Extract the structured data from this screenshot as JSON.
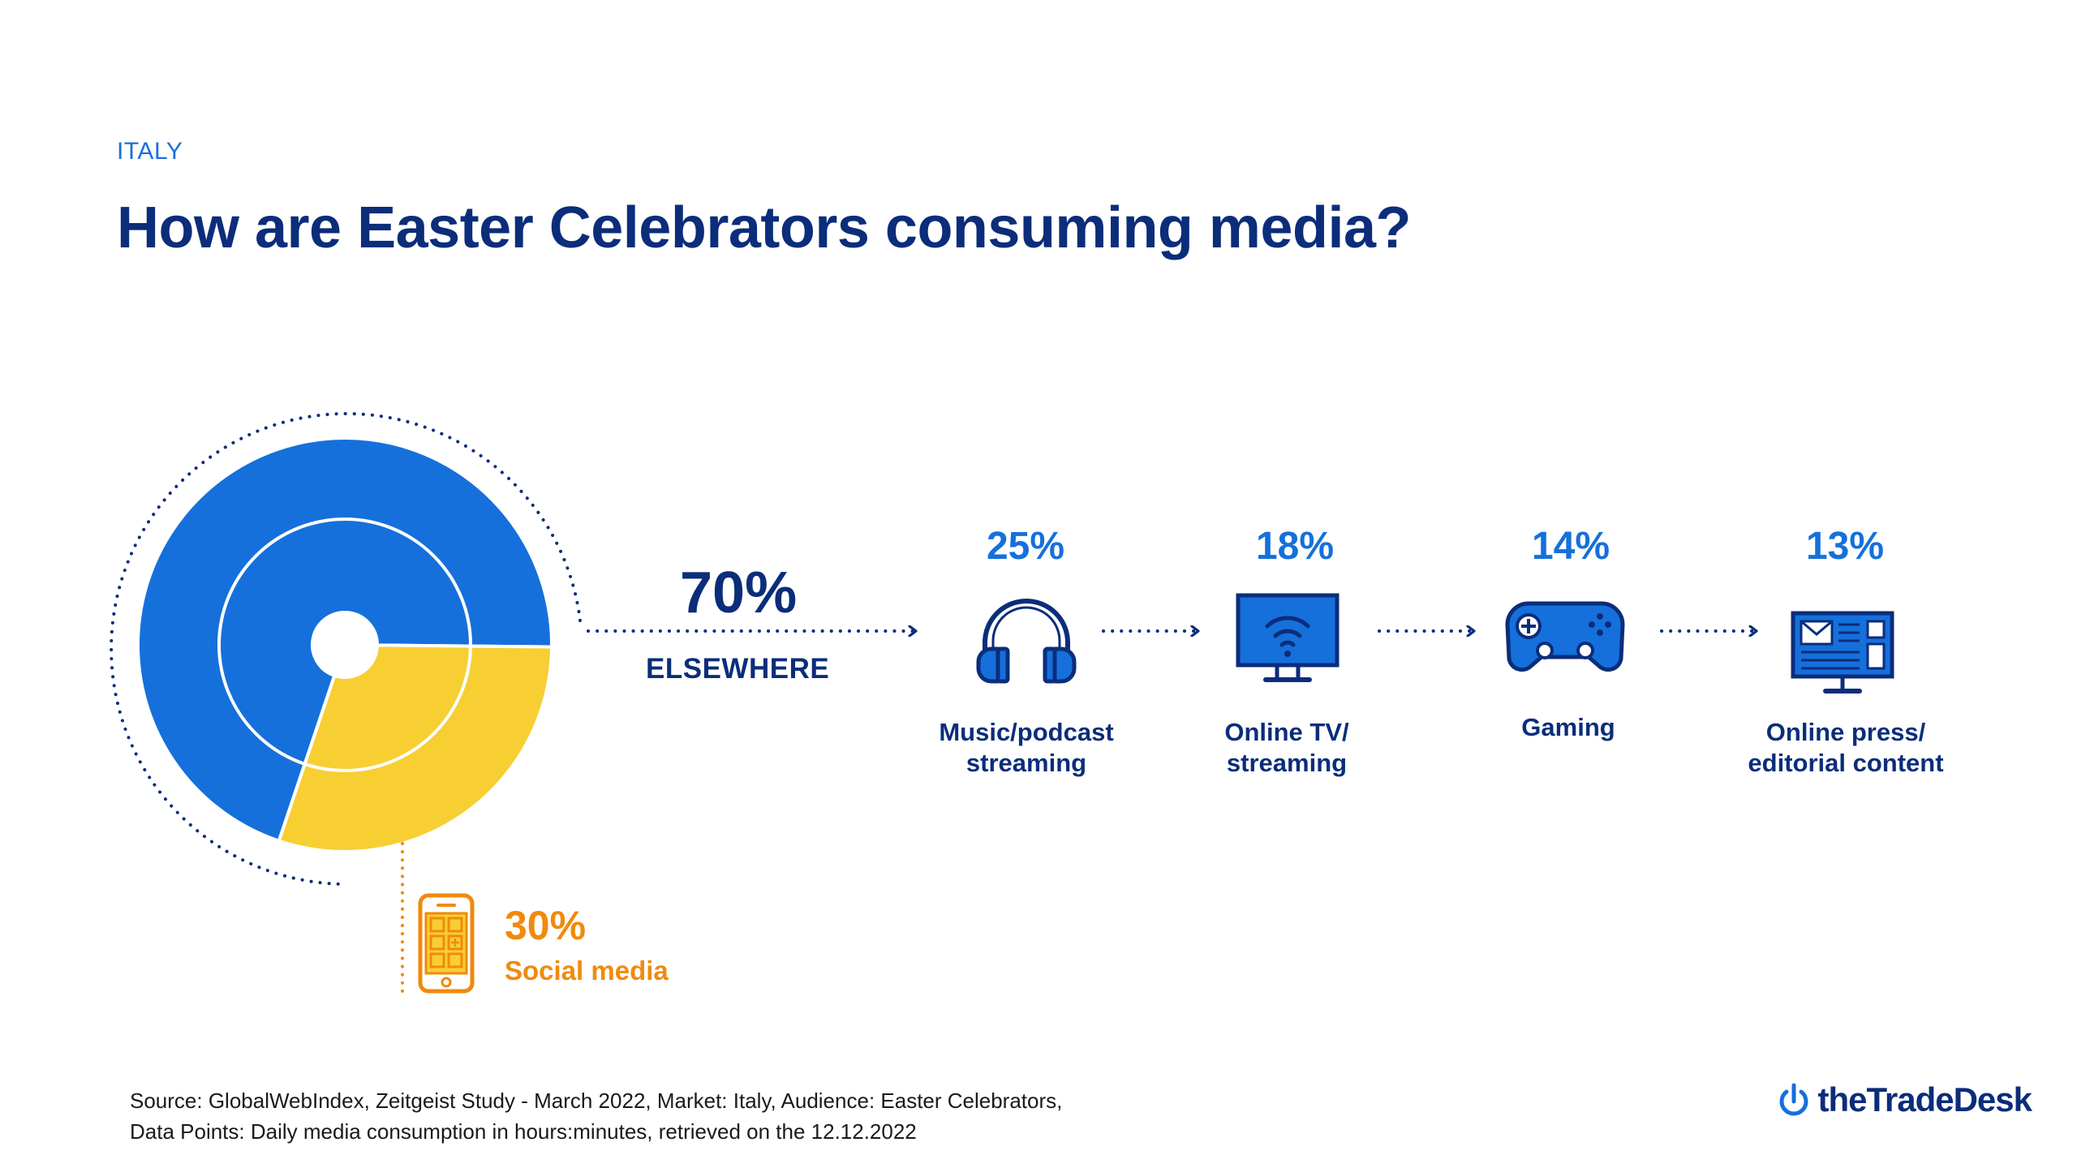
{
  "header": {
    "eyebrow": "ITALY",
    "title": "How are Easter Celebrators consuming media?"
  },
  "colors": {
    "blue": "#1570dc",
    "navy": "#0b2d7a",
    "yellow": "#f7cf33",
    "orange": "#f08a0c"
  },
  "chart_data": {
    "type": "pie",
    "title": "How are Easter Celebrators consuming media?",
    "slices": [
      {
        "label": "ELSEWHERE",
        "value": 70,
        "display": "70%"
      },
      {
        "label": "Social media",
        "value": 30,
        "display": "30%"
      }
    ],
    "breakdown": [
      {
        "label": "Music/podcast\nstreaming",
        "value": 25,
        "display": "25%",
        "icon": "headphones-icon"
      },
      {
        "label": "Online TV/\nstreaming",
        "value": 18,
        "display": "18%",
        "icon": "tv-icon"
      },
      {
        "label": "Gaming",
        "value": 14,
        "display": "14%",
        "icon": "gamepad-icon"
      },
      {
        "label": "Online press/\neditorial content",
        "value": 13,
        "display": "13%",
        "icon": "monitor-news-icon"
      }
    ]
  },
  "footer": {
    "source": "Source: GlobalWebIndex, Zeitgeist Study - March 2022, Market: Italy, Audience: Easter Celebrators,\nData Points: Daily media consumption in hours:minutes, retrieved on the 12.12.2022",
    "brand": "theTradeDesk"
  }
}
